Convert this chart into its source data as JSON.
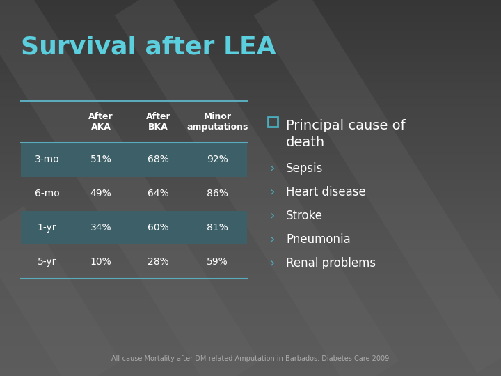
{
  "title": "Survival after LEA",
  "title_color": "#5BCFDE",
  "background_top": "#404040",
  "background_bottom": "#606060",
  "table_headers": [
    "",
    "After\nAKA",
    "After\nBKA",
    "Minor\namputations"
  ],
  "table_rows": [
    [
      "3-mo",
      "51%",
      "68%",
      "92%"
    ],
    [
      "6-mo",
      "49%",
      "64%",
      "86%"
    ],
    [
      "1-yr",
      "34%",
      "60%",
      "81%"
    ],
    [
      "5-yr",
      "10%",
      "28%",
      "59%"
    ]
  ],
  "row_highlight": [
    0,
    2
  ],
  "highlight_color": "#3D6068",
  "line_color": "#5AACBC",
  "bullet_main": "Principal cause of\ndeath",
  "bullet_items": [
    "Sepsis",
    "Heart disease",
    "Stroke",
    "Pneumonia",
    "Renal problems"
  ],
  "checkbox_color": "#4AACBC",
  "arrow_color": "#4AACBC",
  "text_color": "#FFFFFF",
  "footnote": "All-cause Mortality after DM-related Amputation in Barbados. Diabetes Care 2009",
  "footnote_color": "#AAAAAA",
  "stripe_color": "#555555",
  "title_fontsize": 26,
  "header_fontsize": 9,
  "cell_fontsize": 10,
  "bullet_main_fontsize": 14,
  "bullet_sub_fontsize": 12
}
